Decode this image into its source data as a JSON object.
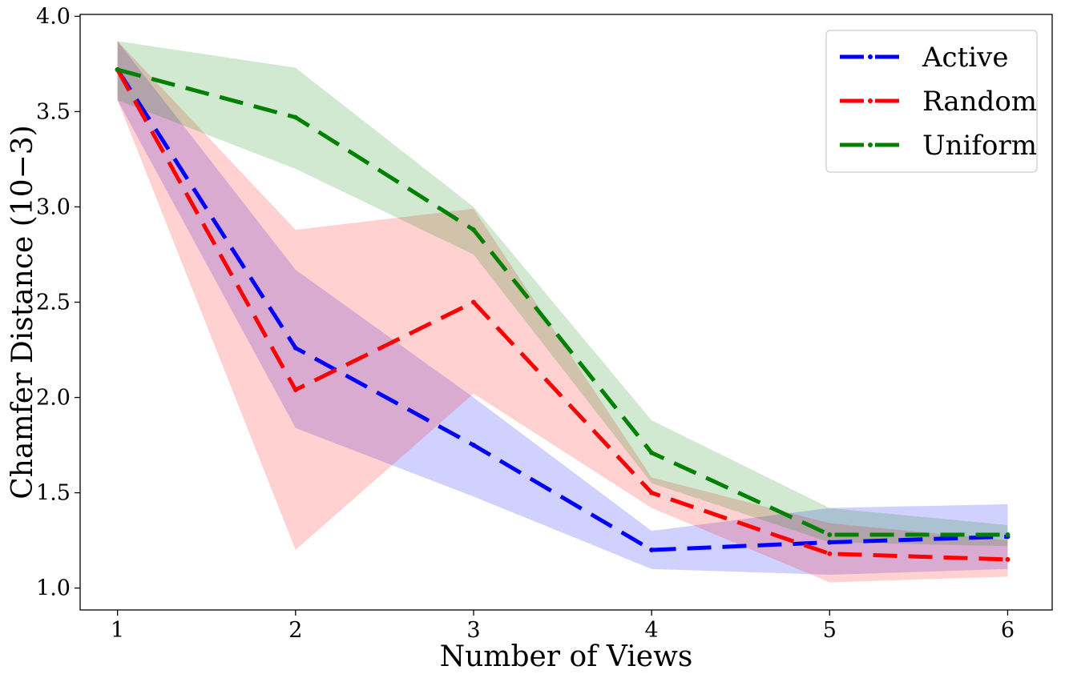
{
  "chart_data": {
    "type": "line",
    "title": "",
    "xlabel": "Number of Views",
    "ylabel": "Chamfer Distance (10−3)",
    "x": [
      1,
      2,
      3,
      4,
      5,
      6
    ],
    "xlim": [
      0.79,
      6.25
    ],
    "ylim": [
      0.885,
      4.01
    ],
    "xticks": [
      1,
      2,
      3,
      4,
      5,
      6
    ],
    "xtick_labels": [
      "1",
      "2",
      "3",
      "4",
      "5",
      "6"
    ],
    "yticks": [
      1.0,
      1.5,
      2.0,
      2.5,
      3.0,
      3.5,
      4.0
    ],
    "ytick_labels": [
      "1.0",
      "1.5",
      "2.0",
      "2.5",
      "3.0",
      "3.5",
      "4.0"
    ],
    "grid": false,
    "legend_position": "top-right",
    "series": [
      {
        "name": "Active",
        "color": "#0000ff",
        "values": [
          3.72,
          2.26,
          1.75,
          1.2,
          1.24,
          1.27
        ],
        "lower": [
          3.56,
          1.84,
          1.48,
          1.1,
          1.07,
          1.1
        ],
        "upper": [
          3.87,
          2.67,
          2.0,
          1.3,
          1.42,
          1.44
        ]
      },
      {
        "name": "Random",
        "color": "#ff0000",
        "values": [
          3.72,
          2.04,
          2.5,
          1.5,
          1.18,
          1.15
        ],
        "lower": [
          3.56,
          1.2,
          2.02,
          1.42,
          1.03,
          1.06
        ],
        "upper": [
          3.87,
          2.88,
          2.99,
          1.58,
          1.34,
          1.25
        ]
      },
      {
        "name": "Uniform",
        "color": "#008000",
        "values": [
          3.72,
          3.47,
          2.88,
          1.71,
          1.28,
          1.28
        ],
        "lower": [
          3.56,
          3.2,
          2.75,
          1.55,
          1.24,
          1.22
        ],
        "upper": [
          3.87,
          3.73,
          3.0,
          1.88,
          1.42,
          1.33
        ]
      }
    ]
  }
}
